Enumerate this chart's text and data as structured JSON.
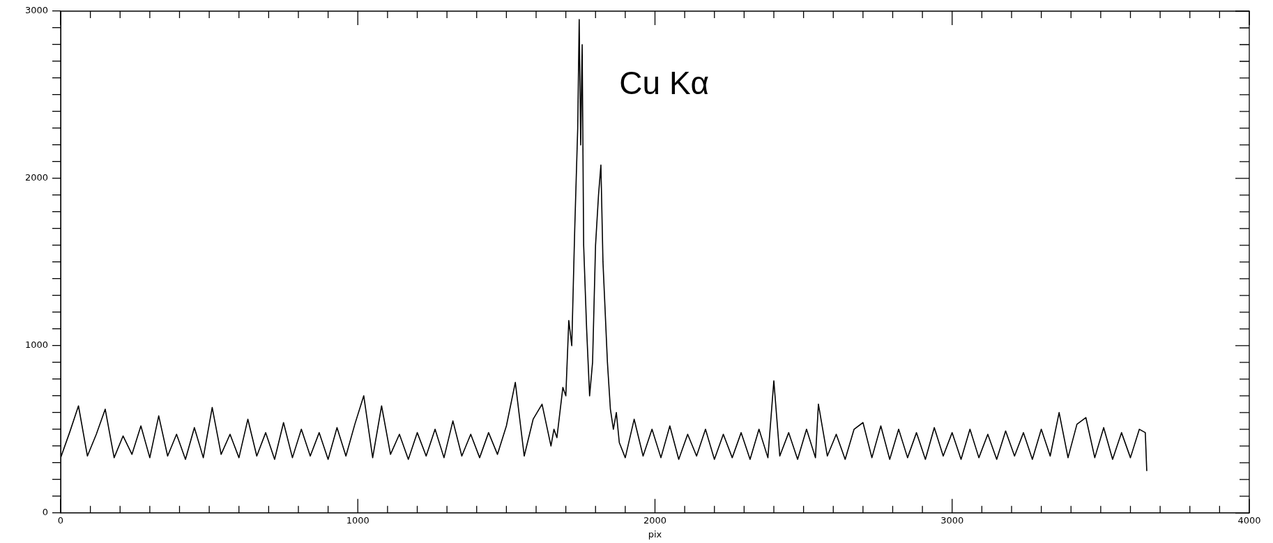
{
  "chart_data": {
    "type": "line",
    "xlabel": "pix",
    "xlim": [
      0,
      4000
    ],
    "ylim": [
      0,
      3000
    ],
    "xticks": [
      0,
      {
        "value": 100,
        "label": null
      },
      {
        "value": 200,
        "label": null
      },
      {
        "value": 300,
        "label": null
      },
      {
        "value": 400,
        "label": null
      },
      {
        "value": 500,
        "label": null
      },
      {
        "value": 600,
        "label": null
      },
      {
        "value": 700,
        "label": null
      },
      {
        "value": 800,
        "label": null
      },
      {
        "value": 900,
        "label": null
      },
      1000,
      {
        "value": 1100,
        "label": null
      },
      {
        "value": 1200,
        "label": null
      },
      {
        "value": 1300,
        "label": null
      },
      {
        "value": 1400,
        "label": null
      },
      {
        "value": 1500,
        "label": null
      },
      {
        "value": 1600,
        "label": null
      },
      {
        "value": 1700,
        "label": null
      },
      {
        "value": 1800,
        "label": null
      },
      {
        "value": 1900,
        "label": null
      },
      2000,
      {
        "value": 2100,
        "label": null
      },
      {
        "value": 2200,
        "label": null
      },
      {
        "value": 2300,
        "label": null
      },
      {
        "value": 2400,
        "label": null
      },
      {
        "value": 2500,
        "label": null
      },
      {
        "value": 2600,
        "label": null
      },
      {
        "value": 2700,
        "label": null
      },
      {
        "value": 2800,
        "label": null
      },
      {
        "value": 2900,
        "label": null
      },
      3000,
      {
        "value": 3100,
        "label": null
      },
      {
        "value": 3200,
        "label": null
      },
      {
        "value": 3300,
        "label": null
      },
      {
        "value": 3400,
        "label": null
      },
      {
        "value": 3500,
        "label": null
      },
      {
        "value": 3600,
        "label": null
      },
      {
        "value": 3700,
        "label": null
      },
      {
        "value": 3800,
        "label": null
      },
      {
        "value": 3900,
        "label": null
      },
      4000
    ],
    "yticks": [
      0,
      {
        "value": 100,
        "label": null
      },
      {
        "value": 200,
        "label": null
      },
      {
        "value": 300,
        "label": null
      },
      {
        "value": 400,
        "label": null
      },
      {
        "value": 500,
        "label": null
      },
      {
        "value": 600,
        "label": null
      },
      {
        "value": 700,
        "label": null
      },
      {
        "value": 800,
        "label": null
      },
      {
        "value": 900,
        "label": null
      },
      1000,
      {
        "value": 1100,
        "label": null
      },
      {
        "value": 1200,
        "label": null
      },
      {
        "value": 1300,
        "label": null
      },
      {
        "value": 1400,
        "label": null
      },
      {
        "value": 1500,
        "label": null
      },
      {
        "value": 1600,
        "label": null
      },
      {
        "value": 1700,
        "label": null
      },
      {
        "value": 1800,
        "label": null
      },
      {
        "value": 1900,
        "label": null
      },
      2000,
      {
        "value": 2100,
        "label": null
      },
      {
        "value": 2200,
        "label": null
      },
      {
        "value": 2300,
        "label": null
      },
      {
        "value": 2400,
        "label": null
      },
      {
        "value": 2500,
        "label": null
      },
      {
        "value": 2600,
        "label": null
      },
      {
        "value": 2700,
        "label": null
      },
      {
        "value": 2800,
        "label": null
      },
      {
        "value": 2900,
        "label": null
      },
      3000
    ],
    "grid": false,
    "legend": false,
    "marker": "none",
    "line_style": "solid",
    "annotations": [
      "Cu Kα"
    ],
    "series": [
      {
        "color": "#000000",
        "x": [
          0,
          30,
          60,
          90,
          120,
          150,
          180,
          210,
          240,
          270,
          300,
          330,
          360,
          390,
          420,
          450,
          480,
          510,
          540,
          570,
          600,
          630,
          660,
          690,
          720,
          750,
          780,
          810,
          840,
          870,
          900,
          930,
          960,
          990,
          1020,
          1050,
          1080,
          1110,
          1140,
          1170,
          1200,
          1230,
          1260,
          1290,
          1320,
          1350,
          1380,
          1410,
          1440,
          1470,
          1500,
          1530,
          1560,
          1590,
          1620,
          1650,
          1660,
          1670,
          1680,
          1690,
          1700,
          1710,
          1720,
          1730,
          1740,
          1745,
          1750,
          1755,
          1760,
          1770,
          1780,
          1790,
          1800,
          1810,
          1818,
          1825,
          1830,
          1840,
          1850,
          1860,
          1870,
          1880,
          1900,
          1930,
          1960,
          1990,
          2020,
          2050,
          2080,
          2110,
          2140,
          2170,
          2200,
          2230,
          2260,
          2290,
          2320,
          2350,
          2380,
          2400,
          2420,
          2450,
          2480,
          2510,
          2540,
          2550,
          2580,
          2610,
          2640,
          2670,
          2700,
          2730,
          2760,
          2790,
          2820,
          2850,
          2880,
          2910,
          2940,
          2970,
          3000,
          3030,
          3060,
          3090,
          3120,
          3150,
          3180,
          3210,
          3240,
          3270,
          3300,
          3330,
          3360,
          3390,
          3420,
          3450,
          3480,
          3510,
          3540,
          3570,
          3600,
          3630,
          3650,
          3655
        ],
        "values": [
          330,
          480,
          640,
          340,
          470,
          620,
          330,
          460,
          350,
          520,
          330,
          580,
          340,
          470,
          320,
          510,
          330,
          630,
          350,
          470,
          330,
          560,
          340,
          480,
          320,
          540,
          330,
          500,
          340,
          480,
          320,
          510,
          340,
          530,
          700,
          330,
          640,
          350,
          470,
          320,
          480,
          340,
          500,
          330,
          550,
          340,
          470,
          330,
          480,
          350,
          520,
          780,
          340,
          560,
          650,
          400,
          500,
          450,
          600,
          750,
          700,
          1150,
          1000,
          1700,
          2300,
          2950,
          2200,
          2800,
          1600,
          1100,
          700,
          900,
          1600,
          1900,
          2080,
          1500,
          1300,
          900,
          620,
          500,
          600,
          420,
          330,
          560,
          340,
          500,
          330,
          520,
          320,
          470,
          340,
          500,
          320,
          470,
          330,
          480,
          320,
          500,
          330,
          790,
          340,
          480,
          320,
          500,
          330,
          650,
          340,
          470,
          320,
          500,
          540,
          330,
          520,
          320,
          500,
          330,
          480,
          320,
          510,
          340,
          480,
          320,
          500,
          330,
          470,
          320,
          490,
          340,
          480,
          320,
          500,
          340,
          600,
          330,
          530,
          570,
          330,
          510,
          320,
          480,
          330,
          500,
          480,
          250
        ]
      }
    ]
  }
}
